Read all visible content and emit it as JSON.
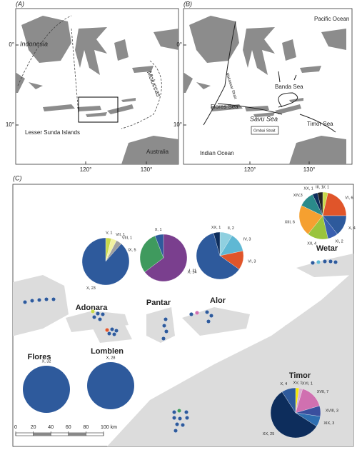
{
  "panels": [
    {
      "label": "(A)",
      "texts": [
        "Indonesia",
        "Moluccas",
        "Lesser Sunda Islands",
        "Australia"
      ],
      "lat": [
        {
          "value": 0,
          "label": "0°"
        },
        {
          "value": 10,
          "label": "10°"
        }
      ],
      "lon": [
        {
          "value": 120,
          "label": "120°"
        },
        {
          "value": 130,
          "label": "130°"
        }
      ]
    },
    {
      "label": "(B)",
      "texts": [
        "Pacific Ocean",
        "Makassar Strait",
        "Banda Sea",
        "Flores Sea",
        "Savu Sea",
        "Timor Sea",
        "Ombai Strait",
        "Indian Ocean"
      ],
      "lat": [
        {
          "value": 0,
          "label": "0°"
        },
        {
          "value": 10,
          "label": "10°"
        }
      ],
      "lon": [
        {
          "value": 120,
          "label": "120°"
        },
        {
          "value": 130,
          "label": "130°"
        }
      ]
    }
  ],
  "panel_c": {
    "label": "(C)",
    "islands": [
      "Adonara",
      "Pantar",
      "Alor",
      "Wetar",
      "Flores",
      "Lomblen",
      "Timor"
    ],
    "pies": [
      {
        "slices": [
          {
            "label": "X, 32",
            "value": 32,
            "color": "#2e5a9c"
          }
        ]
      },
      {
        "slices": [
          {
            "label": "X, 28",
            "value": 28,
            "color": "#2e5a9c"
          }
        ]
      },
      {
        "slices": [
          {
            "label": "V, 1",
            "value": 1,
            "color": "#c8d94a"
          },
          {
            "label": "VII, 1",
            "value": 1,
            "color": "#f2f2a0"
          },
          {
            "label": "VIII, 1",
            "value": 1,
            "color": "#a0a0a0"
          },
          {
            "label": "X, 23",
            "value": 23,
            "color": "#2e5a9c"
          }
        ]
      },
      {
        "slices": [
          {
            "label": "I, 11",
            "value": 11,
            "color": "#7a3f8e"
          },
          {
            "label": "IX, 5",
            "value": 5,
            "color": "#3f9a5e"
          },
          {
            "label": "X, 1",
            "value": 1,
            "color": "#2e5a9c"
          }
        ]
      },
      {
        "slices": [
          {
            "label": "II, 2",
            "value": 2,
            "color": "#8fd0e0"
          },
          {
            "label": "IV, 3",
            "value": 3,
            "color": "#5fb8d4"
          },
          {
            "label": "VI, 3",
            "value": 3,
            "color": "#e0552a"
          },
          {
            "label": "X, 14",
            "value": 14,
            "color": "#2e5a9c"
          },
          {
            "label": "XX, 1",
            "value": 1,
            "color": "#0d2d5c"
          }
        ]
      },
      {
        "slices": [
          {
            "label": "V, 1",
            "value": 1,
            "color": "#c8d94a"
          },
          {
            "label": "VI, 6",
            "value": 6,
            "color": "#e0552a"
          },
          {
            "label": "X, 4",
            "value": 4,
            "color": "#2e5a9c"
          },
          {
            "label": "XI, 2",
            "value": 2,
            "color": "#3a60b0"
          },
          {
            "label": "XII, 4",
            "value": 4,
            "color": "#9ac43c"
          },
          {
            "label": "XIII, 6",
            "value": 6,
            "color": "#f5a030"
          },
          {
            "label": "XIV,3",
            "value": 3,
            "color": "#2a8a8a"
          },
          {
            "label": "XX, 1",
            "value": 1,
            "color": "#0d2d5c"
          },
          {
            "label": "III, 1",
            "value": 1,
            "color": "#222222"
          }
        ]
      },
      {
        "slices": [
          {
            "label": "XV, 1",
            "value": 1,
            "color": "#f2e600"
          },
          {
            "label": "XVI, 1",
            "value": 1,
            "color": "#d8b0d0"
          },
          {
            "label": "XVII, 7",
            "value": 7,
            "color": "#d070b0"
          },
          {
            "label": "XVIII, 3",
            "value": 3,
            "color": "#3a4f9e"
          },
          {
            "label": "XIX, 3",
            "value": 3,
            "color": "#2e6eb0"
          },
          {
            "label": "XX, 25",
            "value": 25,
            "color": "#0d2d5c"
          },
          {
            "label": "X, 4",
            "value": 4,
            "color": "#2e5a9c"
          }
        ]
      }
    ],
    "scale": {
      "ticks": [
        0,
        20,
        40,
        60,
        80,
        {
          "value": 100,
          "label": "100 km"
        }
      ]
    }
  }
}
